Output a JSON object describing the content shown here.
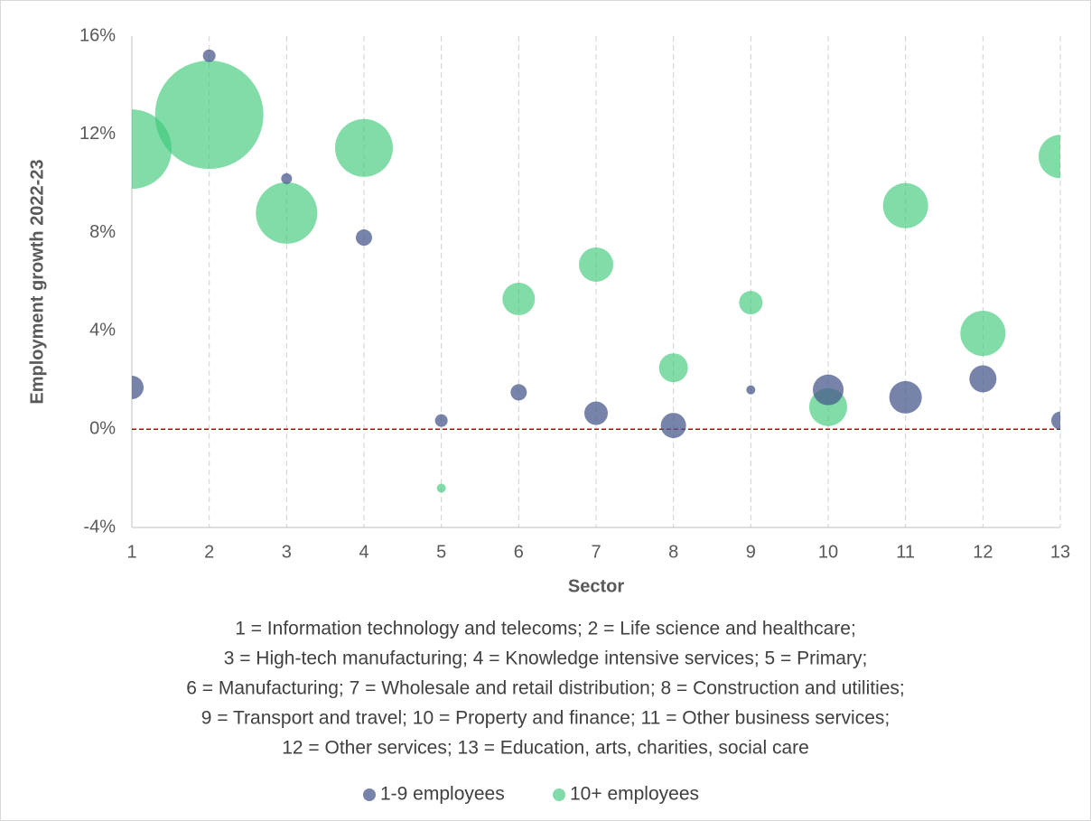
{
  "chart_data": {
    "type": "bubble",
    "xlabel": "Sector",
    "ylabel": "Employment growth 2022-23",
    "x": [
      1,
      2,
      3,
      4,
      5,
      6,
      7,
      8,
      9,
      10,
      11,
      12,
      13
    ],
    "xlim": [
      1,
      13
    ],
    "xticks": [
      1,
      2,
      3,
      4,
      5,
      6,
      7,
      8,
      9,
      10,
      11,
      12,
      13
    ],
    "ylim": [
      -4,
      16
    ],
    "yticks": [
      {
        "value": -4,
        "label": "-4%"
      },
      {
        "value": 0,
        "label": "0%"
      },
      {
        "value": 4,
        "label": "4%"
      },
      {
        "value": 8,
        "label": "8%"
      },
      {
        "value": 12,
        "label": "12%"
      },
      {
        "value": 16,
        "label": "16%"
      }
    ],
    "x_grid": true,
    "reference_y": 0,
    "reference_color": "#c00000",
    "series": [
      {
        "name": "1-9 employees",
        "color": "#4a5a8c",
        "values": [
          1.7,
          15.2,
          10.2,
          7.8,
          0.35,
          1.5,
          0.65,
          0.15,
          1.6,
          1.6,
          1.3,
          2.05,
          0.35
        ],
        "sizes": [
          169,
          49,
          36,
          81,
          49,
          81,
          169,
          196,
          25,
          289,
          324,
          225,
          100
        ]
      },
      {
        "name": "10+ employees",
        "color": "#3ec97a",
        "values": [
          11.4,
          12.8,
          8.8,
          11.45,
          -2.4,
          5.3,
          6.7,
          2.5,
          5.15,
          0.9,
          9.1,
          3.9,
          11.1
        ],
        "sizes": [
          1936,
          3600,
          1156,
          1024,
          25,
          324,
          361,
          256,
          169,
          441,
          625,
          625,
          576
        ]
      }
    ],
    "note": [
      "1 = Information technology and telecoms; 2 = Life science and healthcare;",
      "3 = High-tech manufacturing; 4 = Knowledge intensive services; 5 = Primary;",
      "6 = Manufacturing; 7 = Wholesale and retail distribution; 8 = Construction and utilities;",
      "9 = Transport and travel; 10 = Property and finance; 11 = Other business services;",
      "12 = Other services; 13 = Education, arts, charities, social care"
    ],
    "legend": "bottom"
  }
}
